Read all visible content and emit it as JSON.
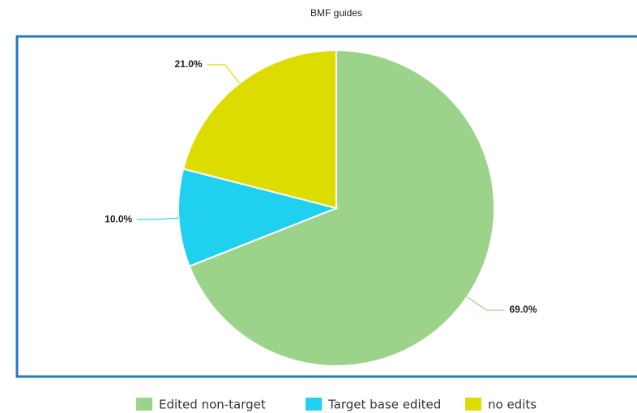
{
  "chart_data": {
    "type": "pie",
    "title": "BMF guides",
    "categories": [
      "Edited non-target",
      "Target base edited",
      "no edits"
    ],
    "values": [
      69,
      10,
      21
    ],
    "value_labels": [
      "69.0%",
      "10.0%",
      "21.0%"
    ],
    "colors": [
      "#9bd38b",
      "#1fd1ee",
      "#dcdc00"
    ]
  }
}
